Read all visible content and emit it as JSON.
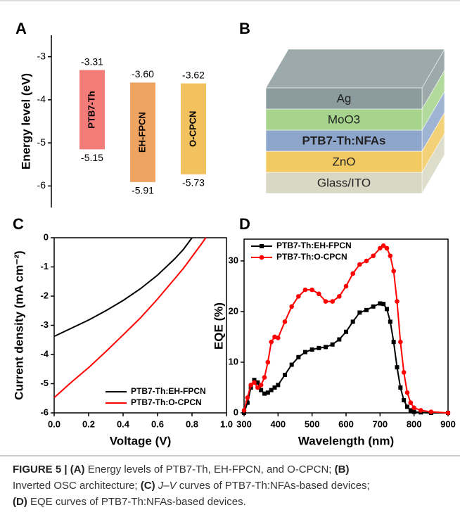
{
  "chart_data": [
    {
      "type": "floating-bar",
      "panel_label": "A",
      "ylabel": "Energy level (eV)",
      "categories": [
        "PTB7-Th",
        "EH-FPCN",
        "O-CPCN"
      ],
      "high": {
        "values": [
          -3.31,
          -3.6,
          -3.62
        ],
        "value_labels": [
          "-3.31",
          "-3.60",
          "-3.62"
        ]
      },
      "low": {
        "values": [
          -5.15,
          -5.91,
          -5.73
        ],
        "value_labels": [
          "-5.15",
          "-5.91",
          "-5.73"
        ]
      },
      "colors": [
        "#f47c78",
        "#f0a462",
        "#f2c25e"
      ],
      "ylim": [
        -6.5,
        -2.5
      ],
      "yticks": [
        -3,
        -4,
        -5,
        -6
      ]
    },
    {
      "type": "line",
      "panel_label": "C",
      "xlabel": "Voltage (V)",
      "ylabel": "Current density (mA cm⁻²)",
      "x": [
        0,
        0.1,
        0.2,
        0.3,
        0.4,
        0.5,
        0.6,
        0.7,
        0.75,
        0.8,
        0.85,
        0.88
      ],
      "series": [
        {
          "name": "PTB7-Th:EH-FPCN",
          "color": "#000000",
          "values": [
            -3.38,
            -3.1,
            -2.82,
            -2.5,
            -2.15,
            -1.75,
            -1.28,
            -0.72,
            -0.4,
            0,
            null,
            null
          ]
        },
        {
          "name": "PTB7-Th:O-CPCN",
          "color": "#ff0000",
          "values": [
            -5.48,
            -4.95,
            -4.45,
            -3.9,
            -3.33,
            -2.75,
            -2.1,
            -1.4,
            -1.05,
            -0.65,
            -0.25,
            0
          ]
        }
      ],
      "xlim": [
        0,
        1.0
      ],
      "xticks": [
        {
          "value": 0,
          "label": "0.0"
        },
        0.2,
        0.4,
        0.6,
        0.8,
        {
          "value": 1,
          "label": "1.0"
        }
      ],
      "ylim": [
        -6,
        0
      ],
      "yticks": [
        0,
        -1,
        -2,
        -3,
        -4,
        -5,
        -6
      ],
      "legend": "lower right"
    },
    {
      "type": "line",
      "panel_label": "D",
      "xlabel": "Wavelength (nm)",
      "ylabel": "EQE (%)",
      "x": [
        300,
        310,
        320,
        330,
        340,
        350,
        360,
        370,
        380,
        390,
        400,
        420,
        440,
        460,
        480,
        500,
        520,
        540,
        560,
        580,
        600,
        620,
        640,
        660,
        680,
        700,
        710,
        720,
        730,
        740,
        750,
        760,
        770,
        780,
        790,
        800,
        820,
        850,
        900
      ],
      "series": [
        {
          "name": "PTB7-Th:EH-FPCN",
          "color": "#000000",
          "marker": "square",
          "values": [
            0,
            2,
            5,
            6.5,
            6,
            4.5,
            3.8,
            4,
            4.5,
            5,
            5.5,
            7.5,
            9.5,
            11,
            12,
            12.5,
            12.8,
            13,
            13.5,
            14.5,
            16,
            18,
            19.8,
            20.3,
            21,
            21.6,
            21.5,
            20.5,
            18,
            14,
            9,
            5,
            2.5,
            1.2,
            0.5,
            0.2,
            0.1,
            0,
            0
          ]
        },
        {
          "name": "PTB7-Th:O-CPCN",
          "color": "#ff0000",
          "marker": "circle",
          "values": [
            0.5,
            3,
            5.5,
            6,
            5,
            5.5,
            7,
            10,
            14,
            15,
            14.8,
            18,
            21,
            23,
            24.3,
            24.3,
            23.5,
            22,
            22,
            23,
            25,
            27.5,
            29.3,
            30,
            31,
            32.5,
            33,
            32.5,
            31,
            28,
            22,
            14,
            8,
            4,
            2,
            1,
            0.5,
            0.2,
            0
          ]
        }
      ],
      "xlim": [
        300,
        900
      ],
      "xticks": [
        300,
        400,
        500,
        600,
        700,
        800,
        900
      ],
      "ylim": [
        0,
        34.3
      ],
      "yticks": [
        0,
        10,
        20,
        30
      ],
      "legend": "upper left"
    }
  ],
  "diagram": {
    "panel_label": "B",
    "layers": [
      {
        "label": "Ag",
        "color": "#8c9c9e"
      },
      {
        "label": "MoO3",
        "color": "#a6d48c"
      },
      {
        "label": "PTB7-Th:NFAs",
        "color": "#8fa6cc"
      },
      {
        "label": "ZnO",
        "color": "#f2ca62"
      },
      {
        "label": "Glass/ITO",
        "color": "#d8d8c4"
      }
    ]
  },
  "caption": [
    [
      {
        "text": "FIGURE 5 | (A)",
        "style": "bold"
      },
      {
        "text": " Energy levels of PTB7-Th, EH-FPCN, and O-CPCN; ",
        "style": "normal"
      },
      {
        "text": "(B)",
        "style": "bold"
      }
    ],
    [
      {
        "text": "Inverted OSC architecture; ",
        "style": "normal"
      },
      {
        "text": "(C) ",
        "style": "bold"
      },
      {
        "text": "J–V",
        "style": "italic"
      },
      {
        "text": " curves of PTB7-Th:NFAs-based devices;",
        "style": "normal"
      }
    ],
    [
      {
        "text": "(D)",
        "style": "bold"
      },
      {
        "text": " EQE curves of PTB7-Th:NFAs-based devices.",
        "style": "normal"
      }
    ]
  ]
}
